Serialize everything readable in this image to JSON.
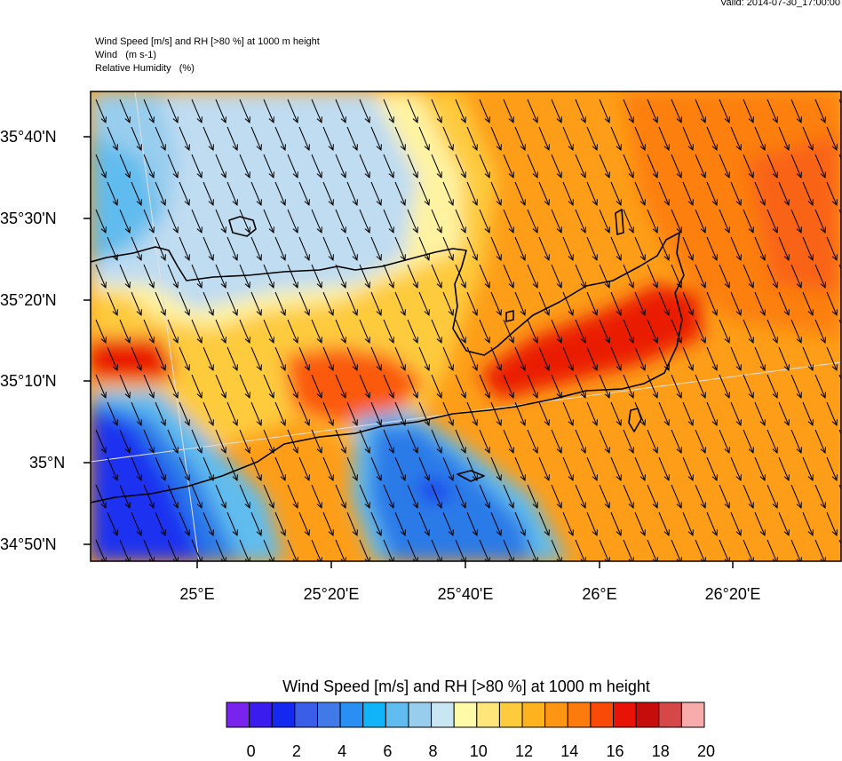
{
  "valid_time": "Valid: 2014-07-30_17:00:00",
  "header": {
    "line1": "Wind Speed [m/s] and RH [>80 %] at 1000 m height",
    "line2": "Wind   (m s-1)",
    "line3": "Relative Humidity   (%)"
  },
  "lat_labels": [
    "35°40'N",
    "35°30'N",
    "35°20'N",
    "35°10'N",
    "35°N",
    "34°50'N"
  ],
  "lon_labels": [
    "25°E",
    "25°20'E",
    "25°40'E",
    "26°E",
    "26°20'E"
  ],
  "colorbar": {
    "title": "Wind Speed [m/s] and RH [>80 %] at 1000 m height",
    "labels": [
      "0",
      "2",
      "4",
      "6",
      "8",
      "10",
      "12",
      "14",
      "16",
      "18",
      "20"
    ],
    "colors": [
      "#7a22ee",
      "#3b1cee",
      "#1428f0",
      "#3a5ee8",
      "#3f7ae8",
      "#2a8ff2",
      "#11b4f8",
      "#60bcee",
      "#98cdee",
      "#c8e6f4",
      "#fffaa8",
      "#ffe57a",
      "#fecb3c",
      "#feb21e",
      "#fe9614",
      "#fd7a0c",
      "#f94a08",
      "#e81206",
      "#c70c0c",
      "#d64848",
      "#f8abab"
    ]
  }
}
